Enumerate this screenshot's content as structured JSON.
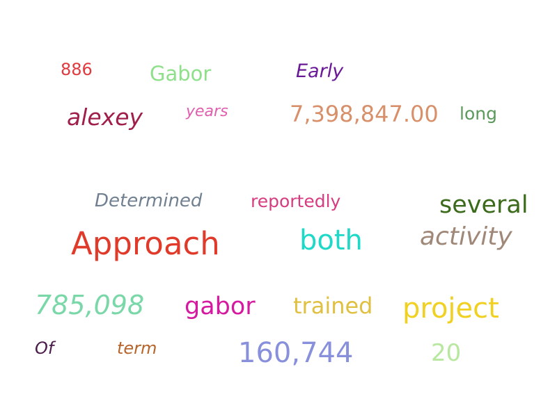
{
  "words": [
    {
      "id": "886",
      "text": "886",
      "color": "#e03a3e"
    },
    {
      "id": "gabor-cap",
      "text": "Gabor",
      "color": "#8fe08a"
    },
    {
      "id": "early",
      "text": "Early",
      "color": "#6a1a96"
    },
    {
      "id": "alexey",
      "text": "alexey",
      "color": "#a01e4a"
    },
    {
      "id": "years",
      "text": "years",
      "color": "#e05fae"
    },
    {
      "id": "amount",
      "text": "7,398,847.00",
      "color": "#d8906a"
    },
    {
      "id": "long",
      "text": "long",
      "color": "#5a9a5a"
    },
    {
      "id": "determined",
      "text": "Determined",
      "color": "#708090"
    },
    {
      "id": "reportedly",
      "text": "reportedly",
      "color": "#d63c80"
    },
    {
      "id": "several",
      "text": "several",
      "color": "#3a6a1a"
    },
    {
      "id": "approach",
      "text": "Approach",
      "color": "#e03a2a"
    },
    {
      "id": "both",
      "text": "both",
      "color": "#1ed8c8"
    },
    {
      "id": "activity",
      "text": "activity",
      "color": "#a08878"
    },
    {
      "id": "785",
      "text": "785,098",
      "color": "#7ad8a8"
    },
    {
      "id": "gabor",
      "text": "gabor",
      "color": "#d61aa0"
    },
    {
      "id": "trained",
      "text": "trained",
      "color": "#e0c040"
    },
    {
      "id": "project",
      "text": "project",
      "color": "#f0d020"
    },
    {
      "id": "of",
      "text": "Of",
      "color": "#4a1a4a"
    },
    {
      "id": "term",
      "text": "term",
      "color": "#b8642a"
    },
    {
      "id": "160",
      "text": "160,744",
      "color": "#8890dc"
    },
    {
      "id": "20",
      "text": "20",
      "color": "#b8e8a0"
    }
  ]
}
